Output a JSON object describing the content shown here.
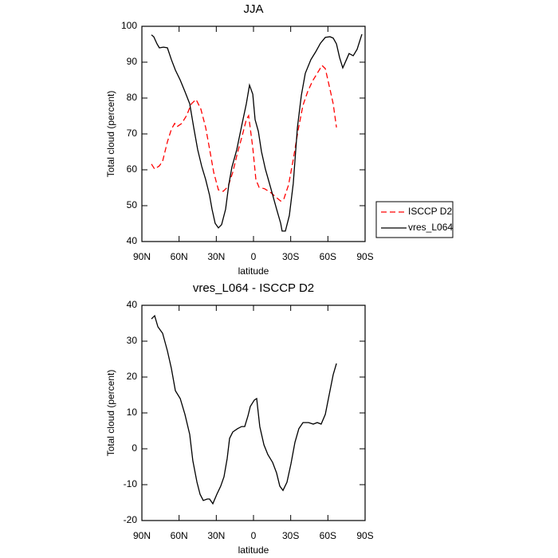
{
  "chart_data": [
    {
      "type": "line",
      "title": "JJA",
      "xlabel": "latitude",
      "ylabel": "Total cloud (percent)",
      "xlim": [
        90,
        -90
      ],
      "xticks": [
        {
          "value": 90,
          "label": "90N"
        },
        {
          "value": 60,
          "label": "60N"
        },
        {
          "value": 30,
          "label": "30N"
        },
        0,
        {
          "value": -30,
          "label": "30S"
        },
        {
          "value": -60,
          "label": "60S"
        },
        {
          "value": -90,
          "label": "90S"
        }
      ],
      "ylim": [
        40,
        100
      ],
      "yticks": [
        40,
        50,
        60,
        70,
        80,
        90,
        100
      ],
      "series": [
        {
          "name": "ISCCP D2",
          "color": "#ff0000",
          "line_style": "dashed",
          "x": [
            82.3,
            79.7,
            75.9,
            73.3,
            69.4,
            66.2,
            63.6,
            61.7,
            57.9,
            54.0,
            50.1,
            46.3,
            42.4,
            38.6,
            35.4,
            32.1,
            28.3,
            24.4,
            20.6,
            16.7,
            12.9,
            9.0,
            5.8,
            3.9,
            0.6,
            -1.9,
            -4.5,
            -9.0,
            -14.1,
            -18.0,
            -21.9,
            -24.4,
            -28.3,
            -32.1,
            -36.0,
            -39.9,
            -43.7,
            -47.6,
            -51.4,
            -55.3,
            -57.9,
            -61.7,
            -64.3,
            -66.9
          ],
          "values": [
            61.6,
            60.2,
            61.1,
            62.4,
            67.8,
            71.3,
            72.9,
            72,
            72.9,
            75.1,
            78.4,
            79.6,
            76.9,
            71.8,
            65.8,
            59.3,
            54.4,
            54,
            55.3,
            59.3,
            64.7,
            69.6,
            74,
            75.1,
            66.2,
            57.3,
            55.1,
            54.7,
            53.6,
            52.4,
            51.3,
            51.8,
            55.8,
            62.9,
            71.1,
            78,
            81.8,
            84.7,
            86.9,
            89.1,
            88.2,
            82.4,
            78.4,
            71.8
          ]
        },
        {
          "name": "vres_L064",
          "color": "#000000",
          "line_style": "solid",
          "x": [
            82.3,
            80.4,
            77.8,
            75.9,
            72.6,
            69.4,
            66.2,
            63.0,
            59.1,
            55.3,
            51.4,
            48.2,
            45.0,
            41.8,
            38.6,
            35.4,
            33.4,
            30.9,
            28.3,
            25.7,
            22.5,
            19.9,
            17.4,
            13.5,
            9.6,
            5.8,
            3.2,
            0.6,
            -1.3,
            -3.9,
            -6.4,
            -9.6,
            -14.1,
            -18.6,
            -21.9,
            -23.1,
            -25.7,
            -28.9,
            -32.1,
            -35.4,
            -38.6,
            -41.8,
            -46.3,
            -50.2,
            -54.0,
            -57.9,
            -61.7,
            -64.3,
            -66.9,
            -69.4,
            -72.0,
            -74.6,
            -77.1,
            -80.4,
            -83.6,
            -87.4
          ],
          "values": [
            97.6,
            97.1,
            95.1,
            94,
            94.2,
            94,
            90.7,
            87.8,
            85,
            81.8,
            78.4,
            71.8,
            65.6,
            61,
            57.3,
            52.9,
            49,
            45.1,
            43.8,
            44.7,
            49,
            55.8,
            60.7,
            65.6,
            72.2,
            78.4,
            83.6,
            81.1,
            74,
            70.7,
            65.1,
            60.2,
            54.7,
            49.1,
            45.1,
            42.9,
            42.9,
            47.3,
            56.2,
            71.8,
            80.7,
            86.9,
            90.7,
            92.9,
            95.3,
            96.9,
            97.1,
            96.7,
            95.1,
            91.3,
            88.4,
            90.4,
            92.4,
            91.8,
            93.6,
            97.8
          ]
        }
      ]
    },
    {
      "type": "line",
      "title": "vres_L064 - ISCCP D2",
      "xlabel": "latitude",
      "ylabel": "Total cloud (percent)",
      "xlim": [
        90,
        -90
      ],
      "xticks": [
        {
          "value": 90,
          "label": "90N"
        },
        {
          "value": 60,
          "label": "60N"
        },
        {
          "value": 30,
          "label": "30N"
        },
        0,
        {
          "value": -30,
          "label": "30S"
        },
        {
          "value": -60,
          "label": "60S"
        },
        {
          "value": -90,
          "label": "90S"
        }
      ],
      "ylim": [
        -20,
        40
      ],
      "yticks": [
        -20,
        -10,
        0,
        10,
        20,
        30,
        40
      ],
      "color": "#000000",
      "x": [
        82.3,
        79.7,
        77.1,
        73.3,
        69.4,
        66.2,
        63.0,
        59.1,
        55.3,
        51.4,
        48.9,
        45.6,
        43.1,
        40.5,
        37.3,
        35.4,
        32.8,
        29.6,
        26.4,
        23.8,
        21.2,
        19.3,
        16.7,
        12.9,
        9.6,
        7.1,
        4.5,
        2.6,
        -0.7,
        -2.6,
        -5.1,
        -8.4,
        -11.6,
        -15.4,
        -18.6,
        -21.2,
        -23.8,
        -27.0,
        -30.2,
        -33.4,
        -36.6,
        -39.9,
        -44.4,
        -48.2,
        -51.4,
        -54.6,
        -57.9,
        -61.1,
        -64.3,
        -66.9
      ],
      "values": [
        36.2,
        37.1,
        34,
        32.2,
        27.3,
        22.4,
        16.2,
        14,
        9.6,
        4,
        -3.3,
        -9.3,
        -12.7,
        -14.4,
        -14,
        -14,
        -15.3,
        -12.7,
        -10.4,
        -7.8,
        -2.7,
        2.9,
        4.7,
        5.6,
        6.2,
        6.2,
        9.1,
        11.8,
        13.6,
        14,
        6.2,
        1.1,
        -1.6,
        -3.8,
        -6.7,
        -10.4,
        -11.6,
        -9.3,
        -4.2,
        1.8,
        5.6,
        7.3,
        7.3,
        6.9,
        7.3,
        6.9,
        9.6,
        15.1,
        20.7,
        23.8
      ]
    }
  ]
}
